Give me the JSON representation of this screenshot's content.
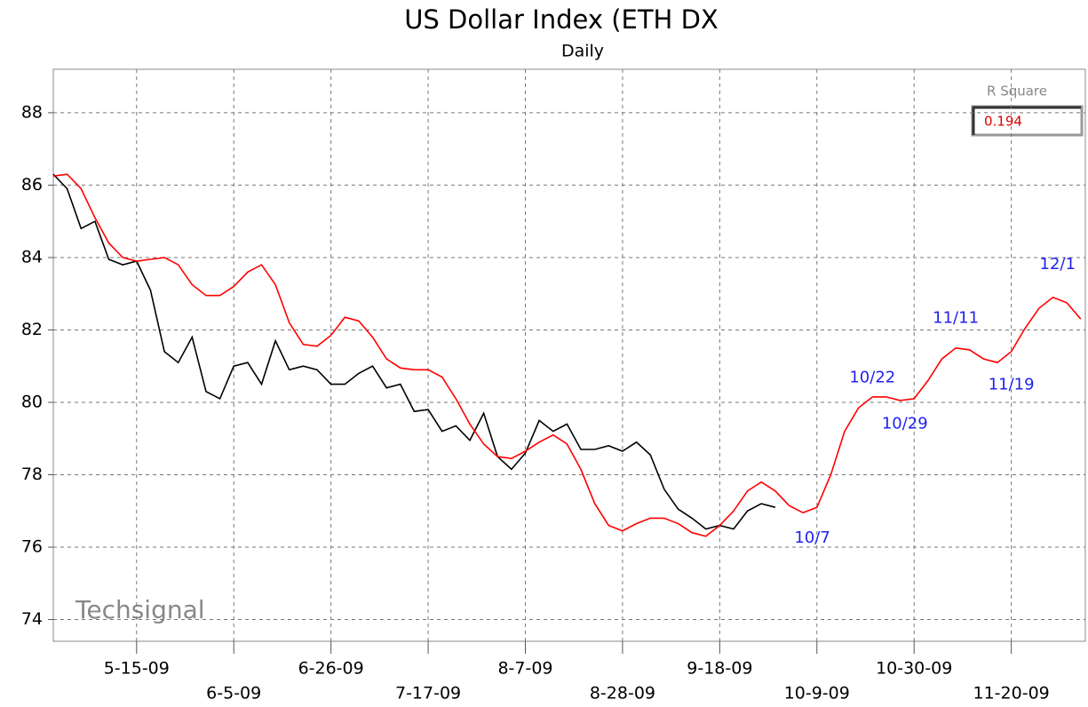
{
  "chart_data": {
    "type": "line",
    "title": "US Dollar Index (ETH DX",
    "subtitle": "Daily",
    "watermark": "Techsignal",
    "r_square": {
      "label": "R Square",
      "value": 0.194
    },
    "grid": true,
    "xlim": [
      "2009-04-27",
      "2009-12-06"
    ],
    "ylim": [
      73.4,
      89.2
    ],
    "yticks": [
      74,
      76,
      78,
      80,
      82,
      84,
      86,
      88
    ],
    "xticks": [
      {
        "value": "2009-05-15",
        "label": "5-15-09"
      },
      {
        "value": "2009-06-05",
        "label": "6-5-09"
      },
      {
        "value": "2009-06-26",
        "label": "6-26-09"
      },
      {
        "value": "2009-07-17",
        "label": "7-17-09"
      },
      {
        "value": "2009-08-07",
        "label": "8-7-09"
      },
      {
        "value": "2009-08-28",
        "label": "8-28-09"
      },
      {
        "value": "2009-09-18",
        "label": "9-18-09"
      },
      {
        "value": "2009-10-09",
        "label": "10-9-09"
      },
      {
        "value": "2009-10-30",
        "label": "10-30-09"
      },
      {
        "value": "2009-11-20",
        "label": "11-20-09"
      }
    ],
    "series": [
      {
        "color": "#000000",
        "x": [
          "2009-04-27",
          "2009-04-30",
          "2009-05-03",
          "2009-05-06",
          "2009-05-09",
          "2009-05-12",
          "2009-05-15",
          "2009-05-18",
          "2009-05-21",
          "2009-05-24",
          "2009-05-27",
          "2009-05-30",
          "2009-06-02",
          "2009-06-05",
          "2009-06-08",
          "2009-06-11",
          "2009-06-14",
          "2009-06-17",
          "2009-06-20",
          "2009-06-23",
          "2009-06-26",
          "2009-06-29",
          "2009-07-02",
          "2009-07-05",
          "2009-07-08",
          "2009-07-11",
          "2009-07-14",
          "2009-07-17",
          "2009-07-20",
          "2009-07-23",
          "2009-07-26",
          "2009-07-29",
          "2009-08-01",
          "2009-08-04",
          "2009-08-07",
          "2009-08-10",
          "2009-08-13",
          "2009-08-16",
          "2009-08-19",
          "2009-08-22",
          "2009-08-25",
          "2009-08-28",
          "2009-08-31",
          "2009-09-03",
          "2009-09-06",
          "2009-09-09",
          "2009-09-12",
          "2009-09-15",
          "2009-09-18",
          "2009-09-21",
          "2009-09-24",
          "2009-09-27",
          "2009-09-30"
        ],
        "values": [
          86.3,
          85.9,
          84.8,
          85.0,
          83.95,
          83.8,
          83.9,
          83.1,
          81.4,
          81.1,
          81.8,
          80.3,
          80.1,
          81.0,
          81.1,
          80.5,
          81.7,
          80.9,
          81.0,
          80.9,
          80.5,
          80.5,
          80.8,
          81.0,
          80.4,
          80.5,
          79.75,
          79.8,
          79.2,
          79.35,
          78.95,
          79.7,
          78.5,
          78.15,
          78.6,
          79.5,
          79.2,
          79.4,
          78.7,
          78.7,
          78.8,
          78.65,
          78.9,
          78.55,
          77.6,
          77.05,
          76.8,
          76.5,
          76.6,
          76.5,
          77.0,
          77.2,
          77.1
        ]
      },
      {
        "color": "#ff0000",
        "x": [
          "2009-04-27",
          "2009-04-30",
          "2009-05-03",
          "2009-05-06",
          "2009-05-09",
          "2009-05-12",
          "2009-05-15",
          "2009-05-18",
          "2009-05-21",
          "2009-05-24",
          "2009-05-27",
          "2009-05-30",
          "2009-06-02",
          "2009-06-05",
          "2009-06-08",
          "2009-06-11",
          "2009-06-14",
          "2009-06-17",
          "2009-06-20",
          "2009-06-23",
          "2009-06-26",
          "2009-06-29",
          "2009-07-02",
          "2009-07-05",
          "2009-07-08",
          "2009-07-11",
          "2009-07-14",
          "2009-07-17",
          "2009-07-20",
          "2009-07-23",
          "2009-07-26",
          "2009-07-29",
          "2009-08-01",
          "2009-08-04",
          "2009-08-07",
          "2009-08-10",
          "2009-08-13",
          "2009-08-16",
          "2009-08-19",
          "2009-08-22",
          "2009-08-25",
          "2009-08-28",
          "2009-08-31",
          "2009-09-03",
          "2009-09-06",
          "2009-09-09",
          "2009-09-12",
          "2009-09-15",
          "2009-09-18",
          "2009-09-21",
          "2009-09-24",
          "2009-09-27",
          "2009-09-30",
          "2009-10-03",
          "2009-10-06",
          "2009-10-09",
          "2009-10-12",
          "2009-10-15",
          "2009-10-18",
          "2009-10-21",
          "2009-10-24",
          "2009-10-27",
          "2009-10-30",
          "2009-11-02",
          "2009-11-05",
          "2009-11-08",
          "2009-11-11",
          "2009-11-14",
          "2009-11-17",
          "2009-11-20",
          "2009-11-23",
          "2009-11-26",
          "2009-11-29",
          "2009-12-02",
          "2009-12-05"
        ],
        "values": [
          86.25,
          86.3,
          85.9,
          85.1,
          84.4,
          84.0,
          83.9,
          83.95,
          84.0,
          83.8,
          83.25,
          82.95,
          82.95,
          83.2,
          83.6,
          83.8,
          83.25,
          82.2,
          81.6,
          81.55,
          81.85,
          82.35,
          82.25,
          81.8,
          81.2,
          80.95,
          80.9,
          80.9,
          80.7,
          80.1,
          79.4,
          78.85,
          78.5,
          78.45,
          78.65,
          78.9,
          79.1,
          78.85,
          78.15,
          77.2,
          76.6,
          76.45,
          76.65,
          76.8,
          76.8,
          76.65,
          76.4,
          76.3,
          76.6,
          77.0,
          77.55,
          77.8,
          77.55,
          77.15,
          76.95,
          77.1,
          78.0,
          79.2,
          79.85,
          80.15,
          80.15,
          80.05,
          80.1,
          80.6,
          81.2,
          81.5,
          81.45,
          81.2,
          81.1,
          81.4,
          82.05,
          82.6,
          82.9,
          82.75,
          82.3
        ]
      }
    ],
    "annotations": [
      {
        "text": "10/7",
        "x": "2009-10-08",
        "y": 76.25
      },
      {
        "text": "10/22",
        "x": "2009-10-21",
        "y": 80.68
      },
      {
        "text": "10/29",
        "x": "2009-10-28",
        "y": 79.4
      },
      {
        "text": "11/11",
        "x": "2009-11-08",
        "y": 82.32
      },
      {
        "text": "11/19",
        "x": "2009-11-20",
        "y": 80.48
      },
      {
        "text": "12/1",
        "x": "2009-11-30",
        "y": 83.8
      }
    ]
  }
}
